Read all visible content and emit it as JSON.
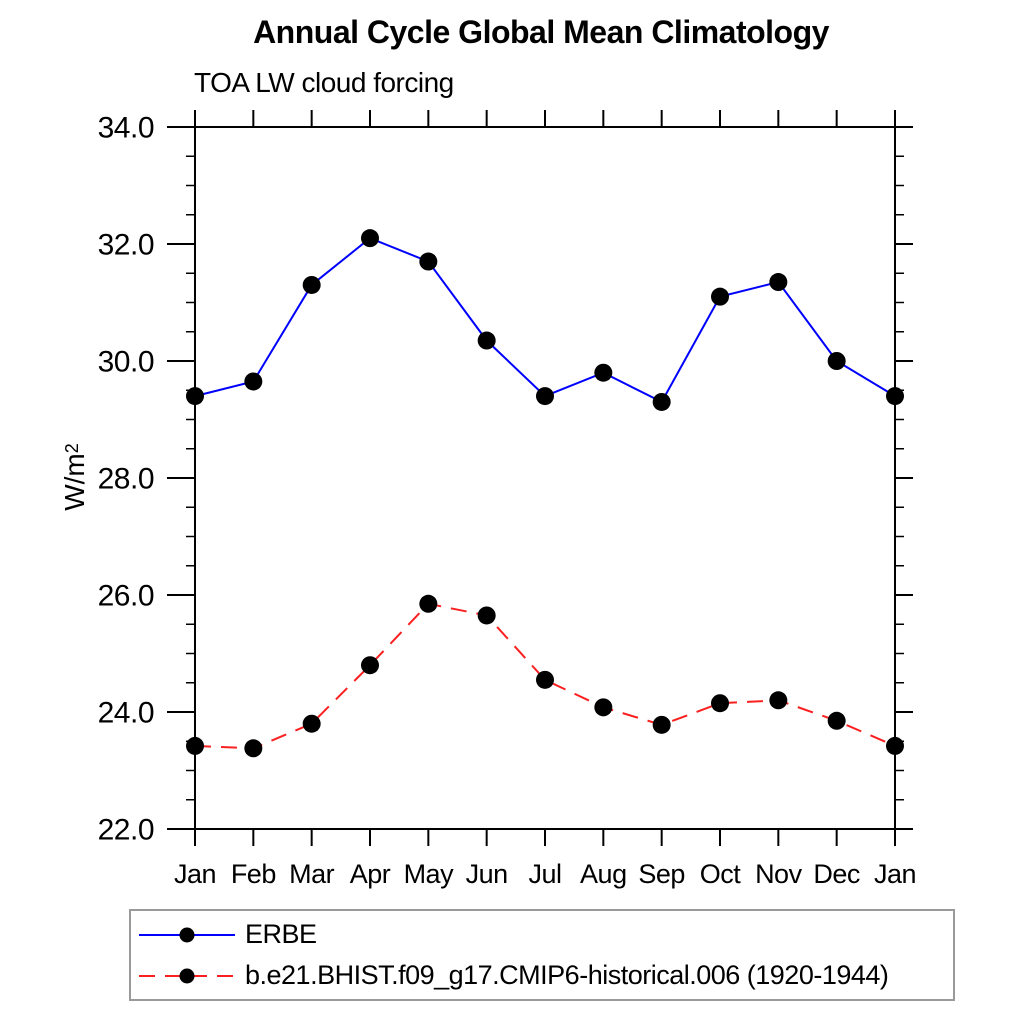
{
  "title": "Annual Cycle Global Mean Climatology",
  "subtitle": "TOA LW cloud forcing",
  "ylabel": {
    "base": "W/m",
    "exponent": "2"
  },
  "colors": {
    "axis": "#000000",
    "text": "#000000",
    "marker": "#000000",
    "legend_border": "#9a9a9a",
    "background": "#ffffff"
  },
  "chart_data": {
    "type": "line",
    "title": "Annual Cycle Global Mean Climatology",
    "subtitle": "TOA LW cloud forcing",
    "xlabel": "",
    "ylabel": "W/m2",
    "x_categories": [
      "Jan",
      "Feb",
      "Mar",
      "Apr",
      "May",
      "Jun",
      "Jul",
      "Aug",
      "Sep",
      "Oct",
      "Nov",
      "Dec",
      "Jan"
    ],
    "ylim": [
      22.0,
      34.0
    ],
    "ytick_labels": [
      "22.0",
      "24.0",
      "26.0",
      "28.0",
      "30.0",
      "32.0",
      "34.0"
    ],
    "ytick_major_step": 2.0,
    "ytick_minor_step": 0.5,
    "grid": false,
    "legend_position": "bottom",
    "series": [
      {
        "name": "ERBE",
        "color": "#0000ff",
        "line_style": "solid",
        "marker": "circle",
        "marker_color": "#000000",
        "values": [
          29.4,
          29.65,
          31.3,
          32.1,
          31.7,
          30.35,
          29.4,
          29.8,
          29.3,
          31.1,
          31.35,
          30.0,
          29.4
        ]
      },
      {
        "name": "b.e21.BHIST.f09_g17.CMIP6-historical.006 (1920-1944)",
        "color": "#fb2020",
        "line_style": "dashed",
        "marker": "circle",
        "marker_color": "#000000",
        "values": [
          23.42,
          23.38,
          23.8,
          24.8,
          25.85,
          25.65,
          24.55,
          24.08,
          23.78,
          24.15,
          24.2,
          23.85,
          23.42
        ]
      }
    ]
  }
}
